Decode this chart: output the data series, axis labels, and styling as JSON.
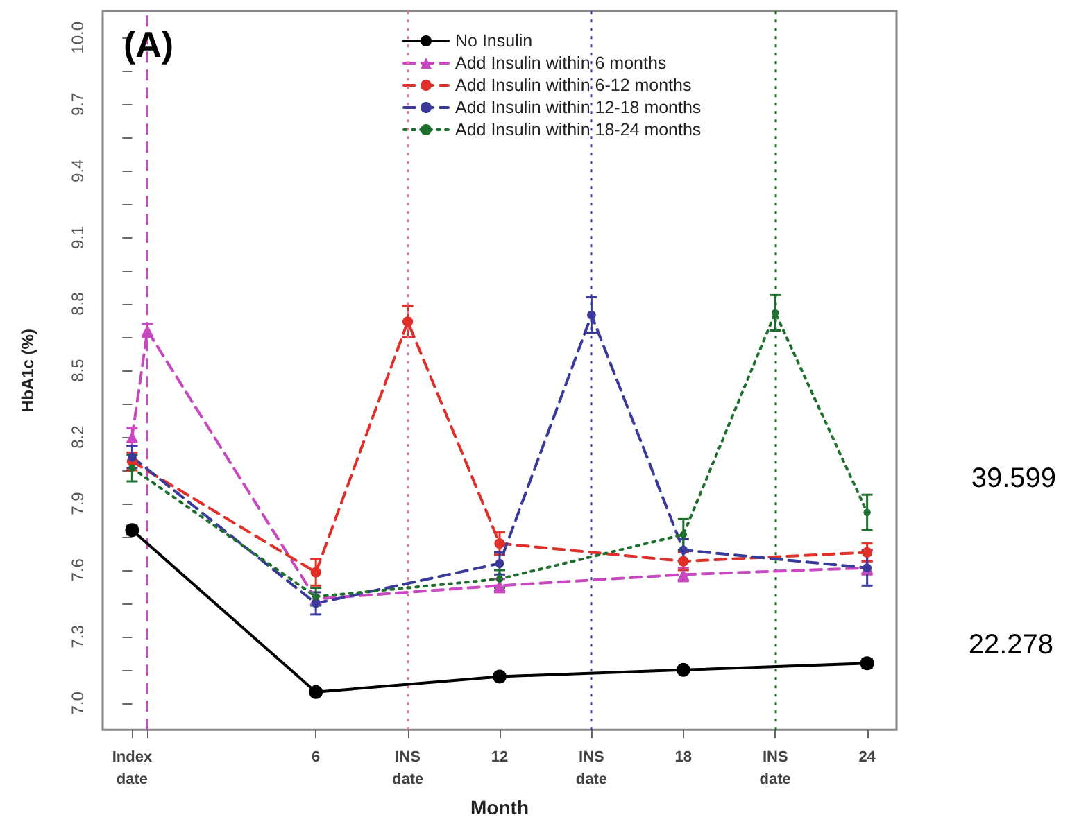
{
  "chart_data": {
    "type": "line",
    "title": "(A)",
    "xlabel": "Month",
    "ylabel": "HbA1c (%)",
    "xlim": [
      -0.96,
      24.96
    ],
    "xticks": [
      {
        "value": 0,
        "label": "Index\ndate"
      },
      {
        "value": 0.5,
        "label": null
      },
      6,
      {
        "value": 9,
        "label": "INS\ndate"
      },
      12,
      {
        "value": 15,
        "label": "INS\ndate"
      },
      18,
      {
        "value": 21,
        "label": "INS\ndate"
      },
      24
    ],
    "ylim": [
      6.88,
      10.12
    ],
    "yticks": [
      "7.0",
      {
        "value": 7.15,
        "label": null
      },
      7.3,
      {
        "value": 7.45,
        "label": null
      },
      7.6,
      {
        "value": 7.75,
        "label": null
      },
      7.9,
      {
        "value": 8.05,
        "label": null
      },
      8.2,
      {
        "value": 8.35,
        "label": null
      },
      8.5,
      {
        "value": 8.65,
        "label": null
      },
      8.8,
      {
        "value": 8.95,
        "label": null
      },
      9.1,
      {
        "value": 9.25,
        "label": null
      },
      9.4,
      {
        "value": 9.55,
        "label": null
      },
      9.7,
      {
        "value": 9.85,
        "label": null
      },
      {
        "value": 10,
        "label": "10.0"
      }
    ],
    "grid": false,
    "legend": "top right",
    "series": [
      {
        "name": "No Insulin",
        "color": "#000000",
        "line_style": "solid",
        "marker": "circle",
        "x": [
          0,
          6,
          12,
          18,
          24
        ],
        "values": [
          7.78,
          7.05,
          7.12,
          7.15,
          7.18
        ],
        "errors": [
          0.02,
          0.01,
          0.01,
          0.01,
          0.02
        ]
      },
      {
        "name": "Add Insulin within 6 months",
        "color": "#c848c0",
        "line_style": "dashed",
        "marker": "triangle",
        "x": [
          0,
          0.5,
          6,
          12,
          18,
          24
        ],
        "values": [
          8.2,
          8.68,
          7.47,
          7.53,
          7.58,
          7.61
        ],
        "errors": [
          0.04,
          0.03,
          null,
          0.03,
          0.03,
          0.03
        ]
      },
      {
        "name": "Add Insulin within 6-12 months",
        "color": "#e0302a",
        "line_style": "dashed",
        "marker": "circle",
        "x": [
          0,
          6,
          9,
          12,
          18,
          24
        ],
        "values": [
          8.09,
          7.59,
          8.72,
          7.72,
          7.64,
          7.68
        ],
        "errors": [
          0.04,
          0.06,
          0.07,
          0.05,
          0.04,
          0.04
        ]
      },
      {
        "name": "Add Insulin within 12-18 months",
        "color": "#3a3a9a",
        "line_style": "dashed",
        "marker": "circle",
        "x": [
          0,
          6,
          12,
          15,
          18,
          24
        ],
        "values": [
          8.11,
          7.45,
          7.63,
          8.75,
          7.69,
          7.61
        ],
        "errors": [
          0.05,
          0.05,
          0.05,
          0.08,
          0.05,
          0.08
        ]
      },
      {
        "name": "Add Insulin within 18-24 months",
        "color": "#1e6e2e",
        "line_style": "dotted",
        "marker": "circle",
        "x": [
          0,
          6,
          12,
          18,
          21,
          24
        ],
        "values": [
          8.06,
          7.48,
          7.56,
          7.76,
          8.76,
          7.86
        ],
        "errors": [
          0.06,
          0.04,
          0.04,
          0.07,
          0.08,
          0.08
        ]
      }
    ],
    "ref_lines": [
      {
        "axis": "x",
        "value": 0.5,
        "label": null,
        "color": "#c848c0",
        "line_style": "dashed"
      },
      {
        "axis": "x",
        "value": 9,
        "label": null,
        "color": "#e87890",
        "line_style": "dotted"
      },
      {
        "axis": "x",
        "value": 15,
        "label": null,
        "color": "#3a3a9a",
        "line_style": "dotted"
      },
      {
        "axis": "x",
        "value": 21,
        "label": null,
        "color": "#1e6e2e",
        "line_style": "dotted"
      }
    ],
    "annotations": [
      "39.599",
      "22.278"
    ]
  }
}
